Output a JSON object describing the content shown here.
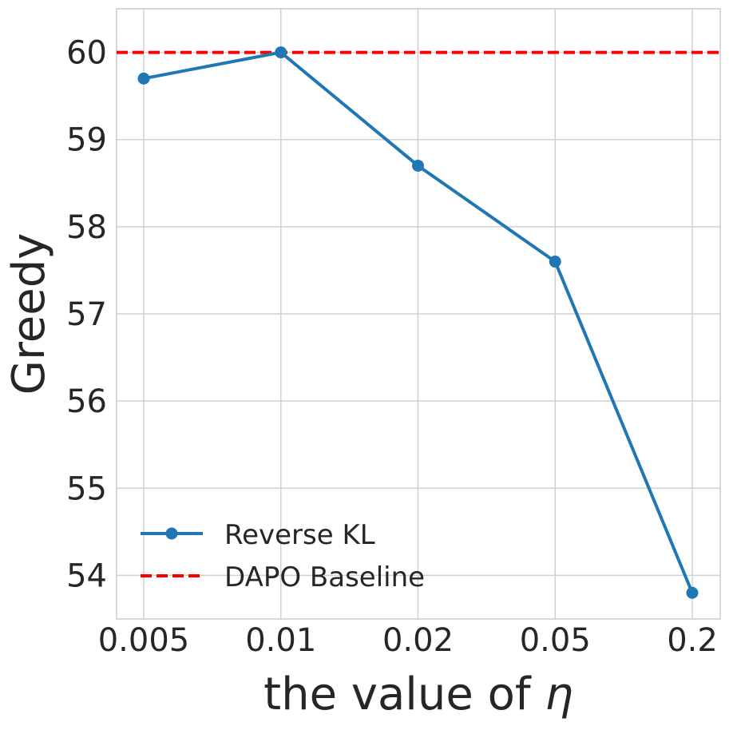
{
  "chart_data": {
    "type": "line",
    "title": "",
    "xlabel_text": "the value of ",
    "xlabel_symbol": "η",
    "ylabel": "Greedy",
    "categories": [
      "0.005",
      "0.01",
      "0.02",
      "0.05",
      "0.2"
    ],
    "series": [
      {
        "name": "Reverse KL",
        "values": [
          59.7,
          60.0,
          58.7,
          57.6,
          53.8
        ],
        "color": "#1f77b4",
        "style": "solid",
        "marker": "circle"
      }
    ],
    "reference_lines": [
      {
        "name": "DAPO Baseline",
        "value": 60.0,
        "color": "#ff0000",
        "style": "dashed"
      }
    ],
    "yticks": [
      "54",
      "55",
      "56",
      "57",
      "58",
      "59",
      "60"
    ],
    "ylim": [
      53.5,
      60.5
    ],
    "grid": true,
    "legend_position": "lower-left",
    "colors": {
      "axis_frame": "#cccccc",
      "grid": "#d0d0d0",
      "text": "#262626"
    }
  }
}
